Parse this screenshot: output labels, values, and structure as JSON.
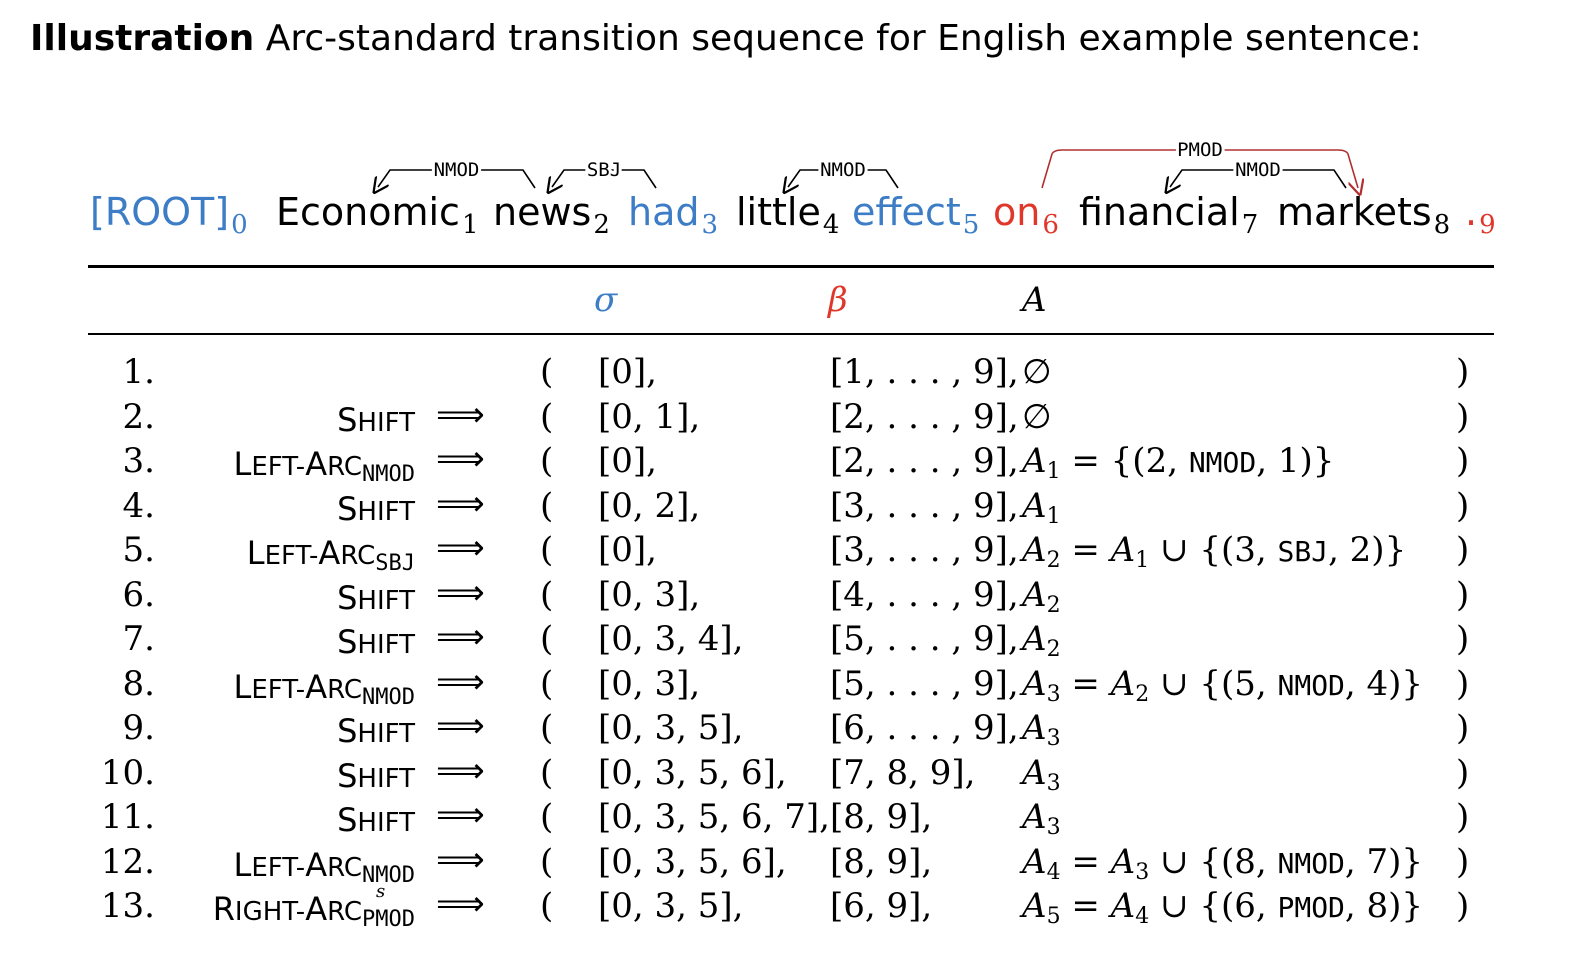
{
  "caption": {
    "bold": "Illustration",
    "text": "Arc-standard transition sequence for English example sentence:"
  },
  "sentence": [
    {
      "word": "[ROOT]",
      "idx": "0",
      "color": "#3d7dc6"
    },
    {
      "word": "Economic",
      "idx": "1",
      "color": "#000000"
    },
    {
      "word": "news",
      "idx": "2",
      "color": "#000000"
    },
    {
      "word": "had",
      "idx": "3",
      "color": "#3d7dc6"
    },
    {
      "word": "little",
      "idx": "4",
      "color": "#000000"
    },
    {
      "word": "effect",
      "idx": "5",
      "color": "#3d7dc6"
    },
    {
      "word": "on",
      "idx": "6",
      "color": "#e0372b"
    },
    {
      "word": "financial",
      "idx": "7",
      "color": "#000000"
    },
    {
      "word": "markets",
      "idx": "8",
      "color": "#000000"
    },
    {
      "word": ".",
      "idx": "9",
      "color": "#e0372b"
    }
  ],
  "arcs": [
    {
      "label": "NMOD",
      "from": "2",
      "to": "1",
      "color": "#000000"
    },
    {
      "label": "SBJ",
      "from": "3",
      "to": "2",
      "color": "#000000"
    },
    {
      "label": "NMOD",
      "from": "5",
      "to": "4",
      "color": "#000000"
    },
    {
      "label": "NMOD",
      "from": "8",
      "to": "7",
      "color": "#000000"
    },
    {
      "label": "PMOD",
      "from": "6",
      "to": "8",
      "color": "#b03030"
    }
  ],
  "header": {
    "sigma": "σ",
    "beta": "β",
    "A": "A",
    "sigma_color": "#3d7dc6",
    "beta_color": "#e0372b"
  },
  "arrow_symbol": "⟹",
  "rows": [
    {
      "n": "1.",
      "op": "",
      "opsub": "",
      "opsup": "",
      "sigma": "[0],",
      "beta": "[1, . . . , 9],",
      "a": "∅"
    },
    {
      "n": "2.",
      "op": "Shift",
      "opsub": "",
      "opsup": "",
      "sigma": "[0, 1],",
      "beta": "[2, . . . , 9],",
      "a": "∅"
    },
    {
      "n": "3.",
      "op": "Left-Arc",
      "opsub": "NMOD",
      "opsup": "",
      "sigma": "[0],",
      "beta": "[2, . . . , 9],",
      "a_name": "A",
      "a_sub": "1",
      "a_rest": " = {(2, ",
      "a_lbl": "NMOD",
      "a_end": ", 1)}"
    },
    {
      "n": "4.",
      "op": "Shift",
      "opsub": "",
      "opsup": "",
      "sigma": "[0, 2],",
      "beta": "[3, . . . , 9],",
      "a_name": "A",
      "a_sub": "1"
    },
    {
      "n": "5.",
      "op": "Left-Arc",
      "opsub": "SBJ",
      "opsup": "",
      "sigma": "[0],",
      "beta": "[3, . . . , 9],",
      "a_name": "A",
      "a_sub": "2",
      "a_rest": " = ",
      "a_prev": "A",
      "a_prev_sub": "1",
      "a_union": " ∪ {(3, ",
      "a_lbl": "SBJ",
      "a_end": ", 2)}"
    },
    {
      "n": "6.",
      "op": "Shift",
      "opsub": "",
      "opsup": "",
      "sigma": "[0, 3],",
      "beta": "[4, . . . , 9],",
      "a_name": "A",
      "a_sub": "2"
    },
    {
      "n": "7.",
      "op": "Shift",
      "opsub": "",
      "opsup": "",
      "sigma": "[0, 3, 4],",
      "beta": "[5, . . . , 9],",
      "a_name": "A",
      "a_sub": "2"
    },
    {
      "n": "8.",
      "op": "Left-Arc",
      "opsub": "NMOD",
      "opsup": "",
      "sigma": "[0, 3],",
      "beta": "[5, . . . , 9],",
      "a_name": "A",
      "a_sub": "3",
      "a_rest": " = ",
      "a_prev": "A",
      "a_prev_sub": "2",
      "a_union": " ∪ {(5, ",
      "a_lbl": "NMOD",
      "a_end": ", 4)}"
    },
    {
      "n": "9.",
      "op": "Shift",
      "opsub": "",
      "opsup": "",
      "sigma": "[0, 3, 5],",
      "beta": "[6, . . . , 9],",
      "a_name": "A",
      "a_sub": "3"
    },
    {
      "n": "10.",
      "op": "Shift",
      "opsub": "",
      "opsup": "",
      "sigma": "[0, 3, 5, 6],",
      "beta": "[7, 8, 9],",
      "a_name": "A",
      "a_sub": "3"
    },
    {
      "n": "11.",
      "op": "Shift",
      "opsub": "",
      "opsup": "",
      "sigma": "[0, 3, 5, 6, 7],",
      "beta": "[8, 9],",
      "a_name": "A",
      "a_sub": "3"
    },
    {
      "n": "12.",
      "op": "Left-Arc",
      "opsub": "NMOD",
      "opsup": "",
      "sigma": "[0, 3, 5, 6],",
      "beta": "[8, 9],",
      "a_name": "A",
      "a_sub": "4",
      "a_rest": " = ",
      "a_prev": "A",
      "a_prev_sub": "3",
      "a_union": " ∪ {(8, ",
      "a_lbl": "NMOD",
      "a_end": ", 7)}"
    },
    {
      "n": "13.",
      "op": "Right-Arc",
      "opsub": "PMOD",
      "opsup": "s",
      "sigma": "[0, 3, 5],",
      "beta": "[6, 9],",
      "a_name": "A",
      "a_sub": "5",
      "a_rest": " = ",
      "a_prev": "A",
      "a_prev_sub": "4",
      "a_union": " ∪ {(6, ",
      "a_lbl": "PMOD",
      "a_end": ", 8)}"
    }
  ],
  "paren_open": "(",
  "paren_close": ")"
}
